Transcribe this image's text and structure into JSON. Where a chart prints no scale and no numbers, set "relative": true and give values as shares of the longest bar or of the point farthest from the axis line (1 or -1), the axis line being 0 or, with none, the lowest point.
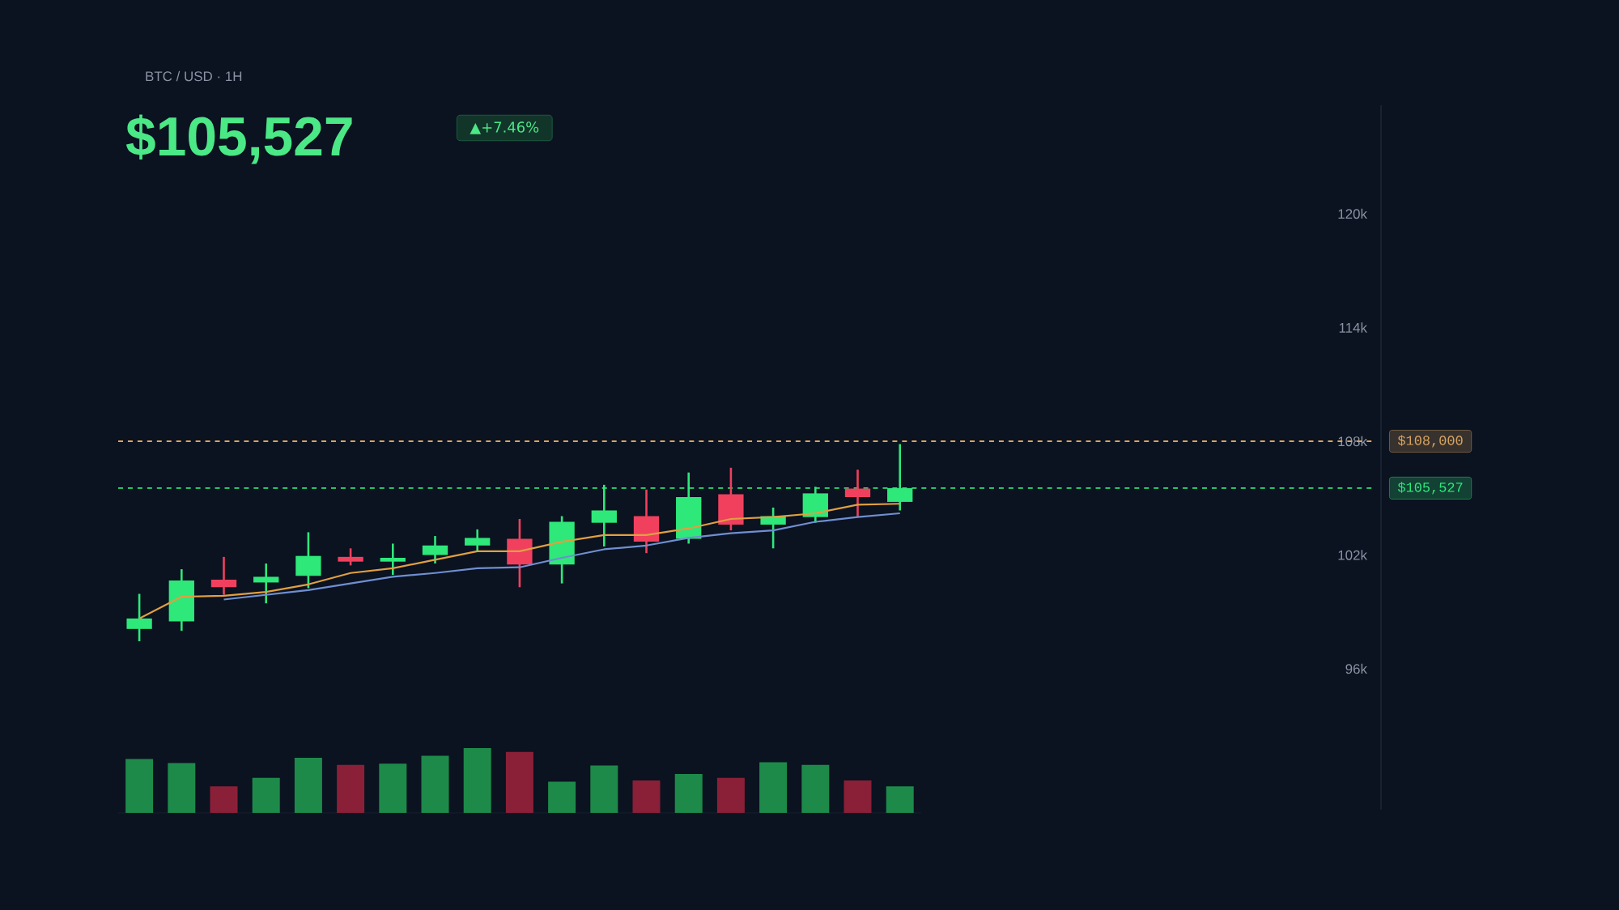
{
  "chart_data": [
    {
      "type": "candlestick",
      "title": "BTC / USD · 1H",
      "subtitle": "$105,527",
      "annotations": [
        "▲+7.46%"
      ],
      "categories": [
        null,
        null,
        null,
        null,
        null,
        null,
        null,
        null,
        null,
        null,
        null,
        null,
        null,
        null,
        null,
        null,
        null,
        null,
        null
      ],
      "ohlc": [
        [
          98100,
          99950,
          97450,
          98650
        ],
        [
          98500,
          101250,
          98000,
          100650
        ],
        [
          100700,
          101900,
          99900,
          100300
        ],
        [
          100550,
          101550,
          99450,
          100850
        ],
        [
          100900,
          103200,
          100250,
          101950
        ],
        [
          101900,
          102350,
          101450,
          101650
        ],
        [
          101650,
          102600,
          100950,
          101850
        ],
        [
          102000,
          103000,
          101550,
          102500
        ],
        [
          102500,
          103350,
          102150,
          102900
        ],
        [
          102850,
          103900,
          100300,
          101500
        ],
        [
          101500,
          104050,
          100500,
          103750
        ],
        [
          103700,
          105700,
          102450,
          104350
        ],
        [
          104050,
          105450,
          102100,
          102700
        ],
        [
          102850,
          106350,
          102600,
          105050
        ],
        [
          105200,
          106600,
          103300,
          103600
        ],
        [
          103600,
          104500,
          102350,
          104050
        ],
        [
          104000,
          105600,
          103700,
          105250
        ],
        [
          105500,
          106500,
          104000,
          105050
        ],
        [
          104800,
          107850,
          104350,
          105527
        ]
      ],
      "colors": [
        "#2ee87a",
        "#2ee87a",
        "#f0405e",
        "#2ee87a",
        "#2ee87a",
        "#f0405e",
        "#2ee87a",
        "#2ee87a",
        "#2ee87a",
        "#f0405e",
        "#2ee87a",
        "#2ee87a",
        "#f0405e",
        "#2ee87a",
        "#f0405e",
        "#2ee87a",
        "#2ee87a",
        "#f0405e",
        "#2ee87a"
      ],
      "series": [
        {
          "type": "line",
          "color": "#e0a040",
          "values": [
            98650,
            99800,
            99850,
            100050,
            100450,
            101050,
            101300,
            101750,
            102200,
            102200,
            102700,
            103050,
            103050,
            103400,
            103900,
            104000,
            104200,
            104650,
            104700
          ]
        },
        {
          "type": "line",
          "color": "#6f8fd0",
          "values": [
            null,
            null,
            99650,
            99900,
            100150,
            100500,
            100850,
            101050,
            101300,
            101350,
            101850,
            102300,
            102500,
            102900,
            103150,
            103300,
            103750,
            104000,
            104200
          ]
        }
      ],
      "ylim": [
        96000,
        120000
      ],
      "yticks": [
        {
          "value": 96000,
          "label": "96k"
        },
        {
          "value": 102000,
          "label": "102k"
        },
        {
          "value": 108000,
          "label": "108k"
        },
        {
          "value": 114000,
          "label": "114k"
        },
        {
          "value": 120000,
          "label": "120k"
        }
      ],
      "tick_labels": "y",
      "ref_lines": [
        {
          "axis": "y",
          "value": 108000,
          "label": "$108,000",
          "color": "#d9a460",
          "line_style": "dashed"
        },
        {
          "axis": "y",
          "value": 105527,
          "label": "$105,527",
          "color": "#2ee87a",
          "line_style": "dashed"
        }
      ]
    },
    {
      "type": "bar",
      "relative": true,
      "categories": [
        null,
        null,
        null,
        null,
        null,
        null,
        null,
        null,
        null,
        null,
        null,
        null,
        null,
        null,
        null,
        null,
        null,
        null,
        null
      ],
      "values": [
        0.83,
        0.77,
        0.41,
        0.54,
        0.85,
        0.74,
        0.76,
        0.88,
        1,
        0.94,
        0.48,
        0.73,
        0.5,
        0.6,
        0.54,
        0.78,
        0.74,
        0.5,
        0.41
      ],
      "colors": [
        "#1e8a4a",
        "#1e8a4a",
        "#8a2038",
        "#1e8a4a",
        "#1e8a4a",
        "#8a2038",
        "#1e8a4a",
        "#1e8a4a",
        "#1e8a4a",
        "#8a2038",
        "#1e8a4a",
        "#1e8a4a",
        "#8a2038",
        "#1e8a4a",
        "#8a2038",
        "#1e8a4a",
        "#1e8a4a",
        "#8a2038",
        "#1e8a4a"
      ]
    }
  ]
}
